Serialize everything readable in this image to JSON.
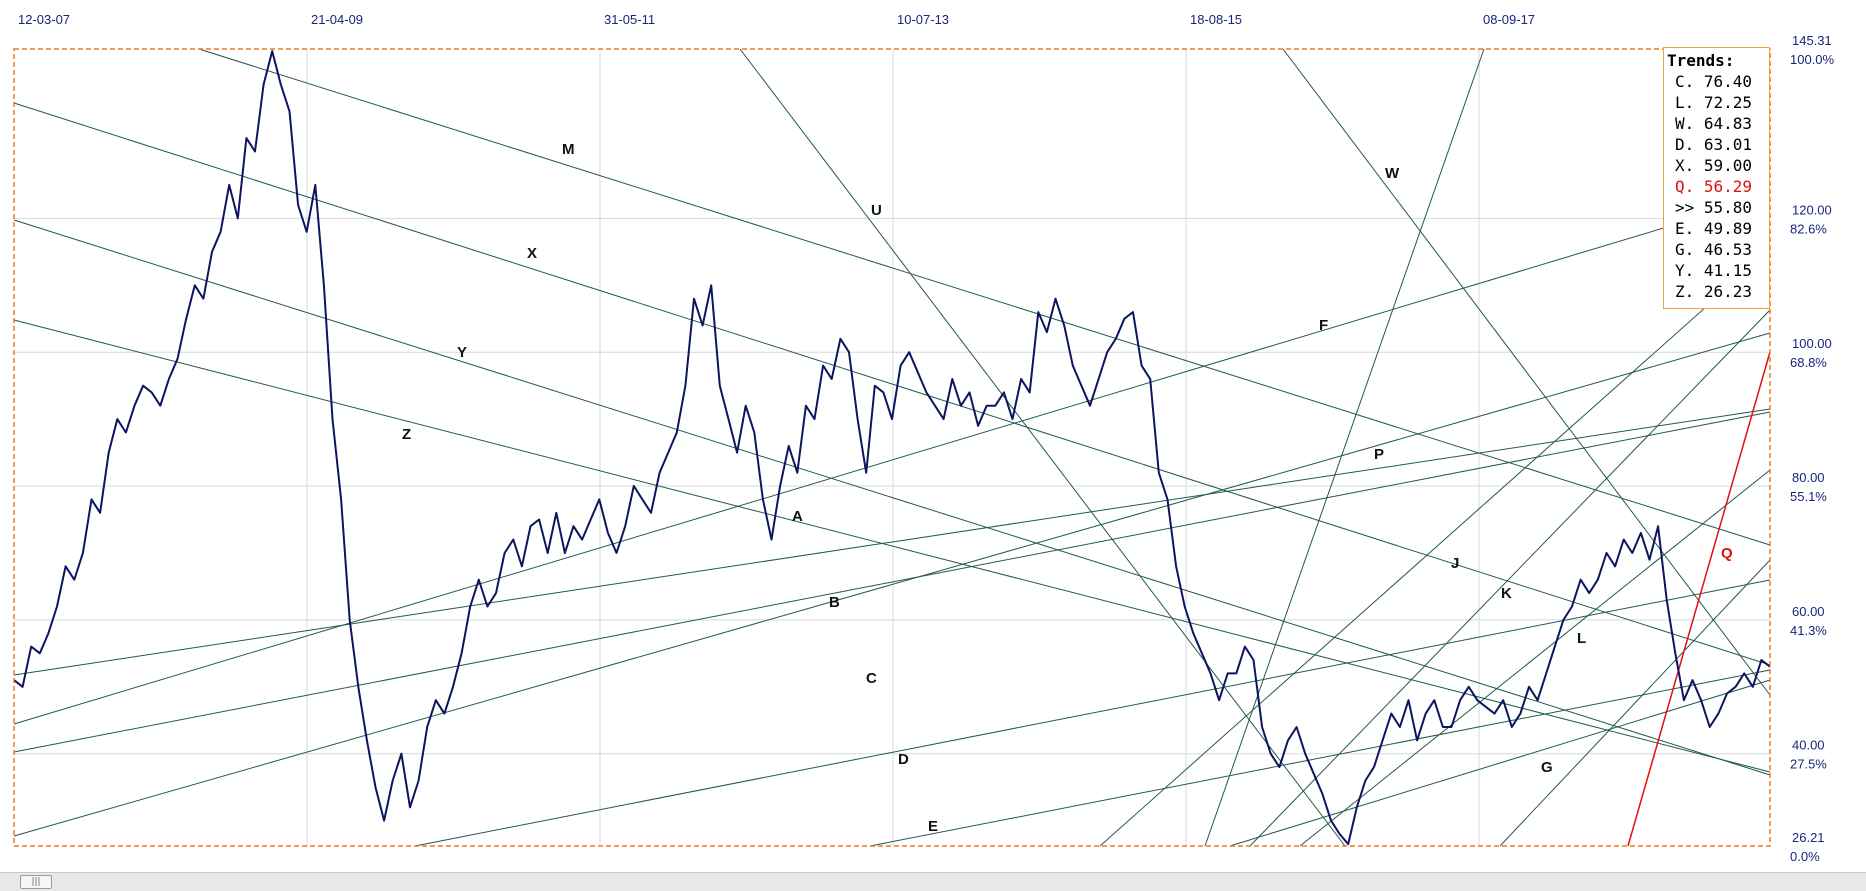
{
  "chart_data": {
    "type": "line",
    "date_labels": [
      "12-03-07",
      "21-04-09",
      "31-05-11",
      "10-07-13",
      "18-08-15",
      "08-09-17"
    ],
    "price_axis": [
      "145.31",
      "120.00",
      "100.00",
      "80.00",
      "60.00",
      "40.00",
      "26.21"
    ],
    "percent_axis": [
      "100.0%",
      "82.6%",
      "68.8%",
      "55.1%",
      "41.3%",
      "27.5%",
      "0.0%"
    ],
    "ylim": [
      26.21,
      145.31
    ],
    "grid": true,
    "series": [
      {
        "values": [
          51,
          50,
          56,
          55,
          58,
          62,
          68,
          66,
          70,
          78,
          76,
          85,
          90,
          88,
          92,
          95,
          94,
          92,
          96,
          99,
          105,
          110,
          108,
          115,
          118,
          125,
          120,
          132,
          130,
          140,
          145,
          140,
          136,
          122,
          118,
          125,
          110,
          90,
          78,
          60,
          50,
          42,
          35,
          30,
          36,
          40,
          32,
          36,
          44,
          48,
          46,
          50,
          55,
          62,
          66,
          62,
          64,
          70,
          72,
          68,
          74,
          75,
          70,
          76,
          70,
          74,
          72,
          75,
          78,
          73,
          70,
          74,
          80,
          78,
          76,
          82,
          85,
          88,
          95,
          108,
          104,
          110,
          95,
          90,
          85,
          92,
          88,
          78,
          72,
          80,
          86,
          82,
          92,
          90,
          98,
          96,
          102,
          100,
          90,
          82,
          95,
          94,
          90,
          98,
          100,
          97,
          94,
          92,
          90,
          96,
          92,
          94,
          89,
          92,
          92,
          94,
          90,
          96,
          94,
          106,
          103,
          108,
          104,
          98,
          95,
          92,
          96,
          100,
          102,
          105,
          106,
          98,
          96,
          82,
          78,
          68,
          62,
          58,
          55,
          52,
          48,
          52,
          52,
          56,
          54,
          44,
          40,
          38,
          42,
          44,
          40,
          37,
          34,
          30,
          28,
          26.5,
          32,
          36,
          38,
          42,
          46,
          44,
          48,
          42,
          46,
          48,
          44,
          44,
          48,
          50,
          48,
          47,
          46,
          48,
          44,
          46,
          50,
          48,
          52,
          56,
          60,
          62,
          66,
          64,
          66,
          70,
          68,
          72,
          70,
          73,
          69,
          74,
          63,
          55,
          48,
          51,
          48,
          44,
          46,
          49,
          50,
          52,
          50,
          54,
          53
        ]
      }
    ],
    "trend_labels": [
      "M",
      "X",
      "Y",
      "Z",
      "A",
      "B",
      "C",
      "D",
      "E",
      "U",
      "W",
      "F",
      "P",
      "J",
      "K",
      "L",
      "G",
      "Q"
    ],
    "legend": {
      "title": "Trends:",
      "entries": [
        {
          "key": "C.",
          "value": "76.40"
        },
        {
          "key": "L.",
          "value": "72.25"
        },
        {
          "key": "W.",
          "value": "64.83"
        },
        {
          "key": "D.",
          "value": "63.01"
        },
        {
          "key": "X.",
          "value": "59.00"
        },
        {
          "key": "Q.",
          "value": "56.29",
          "color": "#e01010"
        },
        {
          "key": ">>",
          "value": "55.80"
        },
        {
          "key": "E.",
          "value": "49.89"
        },
        {
          "key": "G.",
          "value": "46.53"
        },
        {
          "key": "Y.",
          "value": "41.15"
        },
        {
          "key": "Z.",
          "value": "26.23"
        }
      ]
    },
    "colors": {
      "price": "#0b1560",
      "trend": "#1f5a4a",
      "frame": "#f07820",
      "grid": "#d8d8d8",
      "highlight": "#e01010"
    }
  }
}
